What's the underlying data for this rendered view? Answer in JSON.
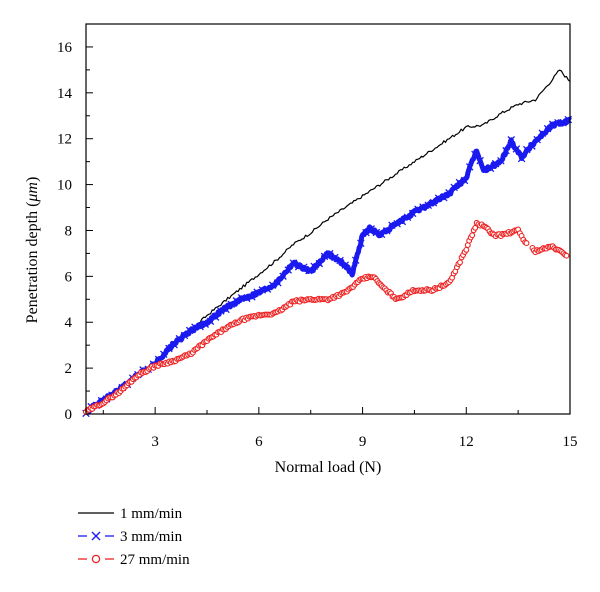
{
  "chart_data": {
    "type": "line",
    "xlabel": "Normal load (N)",
    "ylabel_text": "Penetration depth (",
    "ylabel_unit": "μm",
    "ylabel_close": ")",
    "xlim": [
      1,
      15
    ],
    "ylim": [
      0,
      17
    ],
    "xticks": [
      3,
      6,
      9,
      12,
      15
    ],
    "yticks": [
      0,
      2,
      4,
      6,
      8,
      10,
      12,
      14,
      16
    ],
    "grid": false,
    "legend_position": "bottom-left",
    "series": [
      {
        "name": "1 mm/min",
        "color": "#000000",
        "marker": "none",
        "x": [
          1.0,
          1.5,
          2.0,
          2.5,
          3.0,
          3.5,
          4.0,
          4.5,
          5.0,
          5.5,
          6.0,
          6.5,
          7.0,
          7.5,
          8.0,
          8.5,
          9.0,
          9.5,
          10.0,
          10.5,
          11.0,
          11.5,
          12.0,
          12.5,
          13.0,
          13.5,
          14.0,
          14.5,
          14.7,
          15.0
        ],
        "y": [
          0.1,
          0.5,
          1.1,
          1.7,
          2.2,
          2.9,
          3.6,
          4.3,
          4.9,
          5.5,
          6.1,
          6.7,
          7.4,
          7.9,
          8.5,
          9.0,
          9.5,
          10.0,
          10.5,
          11.0,
          11.5,
          12.0,
          12.5,
          12.6,
          13.1,
          13.5,
          13.7,
          14.6,
          15.0,
          14.5
        ]
      },
      {
        "name": "3 mm/min",
        "color": "#1a1af0",
        "marker": "x",
        "x": [
          1.0,
          1.5,
          2.0,
          2.5,
          3.0,
          3.5,
          4.0,
          4.5,
          5.0,
          5.5,
          6.0,
          6.5,
          7.0,
          7.5,
          8.0,
          8.5,
          8.7,
          9.0,
          9.2,
          9.5,
          10.0,
          10.5,
          11.0,
          11.5,
          12.0,
          12.3,
          12.5,
          13.0,
          13.3,
          13.6,
          14.0,
          14.5,
          15.0
        ],
        "y": [
          0.1,
          0.6,
          1.1,
          1.7,
          2.2,
          3.0,
          3.6,
          4.0,
          4.6,
          5.0,
          5.3,
          5.7,
          6.6,
          6.2,
          7.0,
          6.5,
          6.1,
          7.8,
          8.1,
          7.8,
          8.3,
          8.8,
          9.2,
          9.6,
          10.3,
          11.5,
          10.6,
          11.0,
          11.9,
          11.2,
          11.9,
          12.6,
          12.8
        ]
      },
      {
        "name": "27 mm/min",
        "color": "#ee2222",
        "marker": "o",
        "x": [
          1.0,
          1.5,
          2.0,
          2.5,
          3.0,
          3.5,
          4.0,
          4.5,
          5.0,
          5.5,
          6.0,
          6.5,
          7.0,
          7.5,
          8.0,
          8.5,
          9.0,
          9.3,
          9.6,
          10.0,
          10.5,
          11.0,
          11.5,
          12.0,
          12.3,
          12.5,
          12.8,
          13.0,
          13.5,
          13.7,
          14.0,
          14.5,
          14.9
        ],
        "y": [
          0.1,
          0.5,
          1.0,
          1.7,
          2.1,
          2.3,
          2.6,
          3.2,
          3.7,
          4.1,
          4.3,
          4.4,
          4.9,
          5.0,
          5.0,
          5.3,
          5.9,
          6.0,
          5.5,
          5.0,
          5.4,
          5.4,
          5.7,
          7.2,
          8.3,
          8.2,
          7.8,
          7.8,
          8.0,
          7.5,
          7.1,
          7.3,
          6.9
        ]
      }
    ]
  }
}
